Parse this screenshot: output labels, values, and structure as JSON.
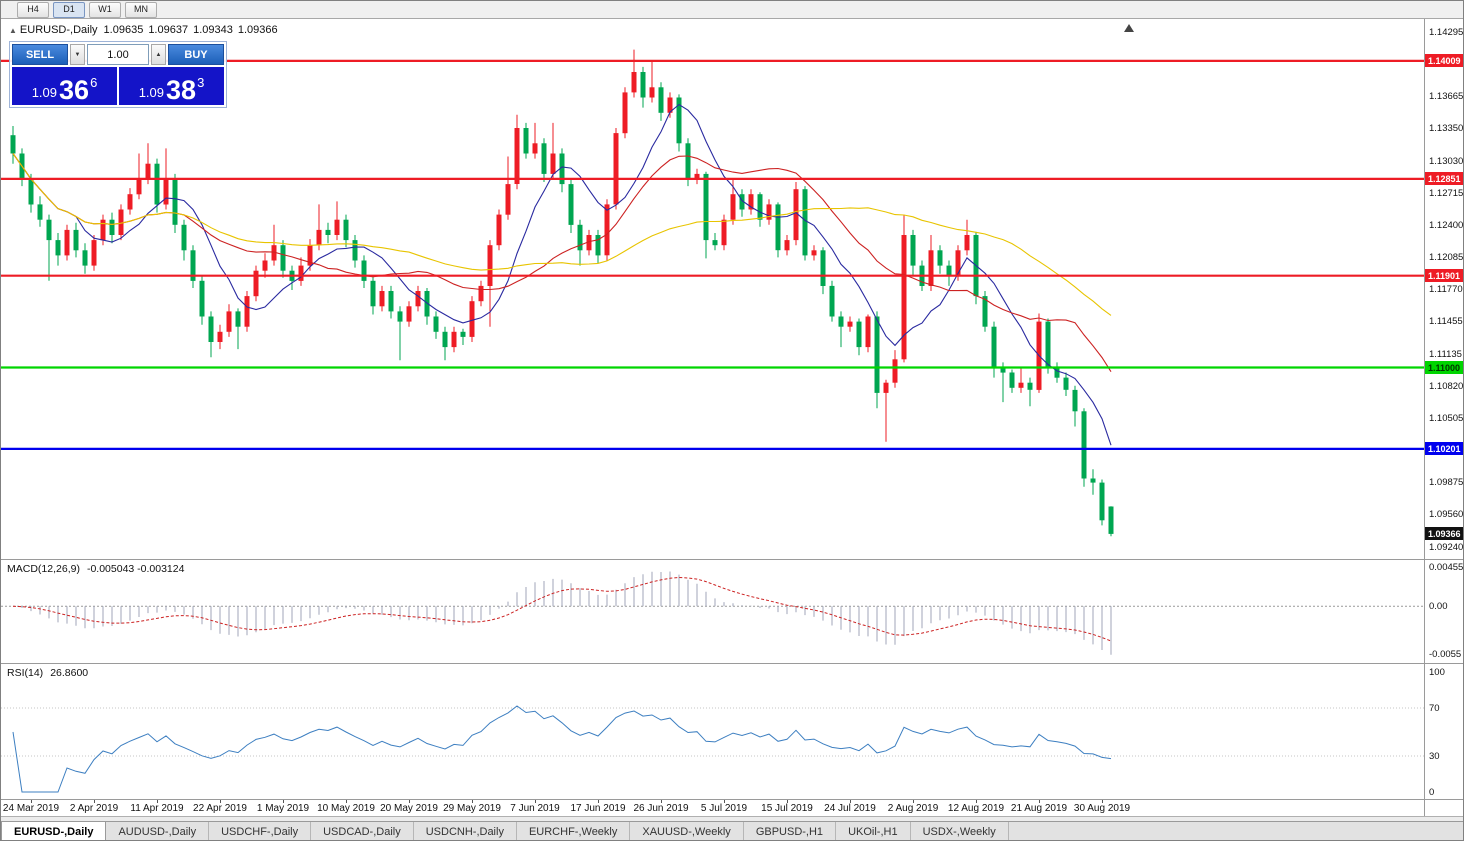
{
  "toolbar": {
    "periods": [
      "H4",
      "D1",
      "W1",
      "MN"
    ],
    "active": "D1"
  },
  "icons": {
    "collapse": "▲",
    "spin_up": "▲",
    "spin_down": "▼",
    "shift_marker": "▲"
  },
  "header": {
    "symbol": "EURUSD-,Daily",
    "open": "1.09635",
    "high": "1.09637",
    "low": "1.09343",
    "close": "1.09366"
  },
  "trade_panel": {
    "sell_label": "SELL",
    "buy_label": "BUY",
    "volume": "1.00",
    "sell_price": {
      "prefix": "1.09",
      "big": "36",
      "sup": "6"
    },
    "buy_price": {
      "prefix": "1.09",
      "big": "38",
      "sup": "3"
    }
  },
  "chart_data": {
    "type": "candlestick",
    "symbol": "EURUSD",
    "timeframe": "Daily",
    "colors": {
      "up": "#ee1c25",
      "down": "#00a651",
      "ma_fast": "#2a2aa0",
      "ma_mid": "#cc2222",
      "ma_slow": "#e8c400",
      "macd_bar": "#a0a6ba",
      "macd_signal": "#cc2222",
      "rsi_line": "#3d7fc1"
    },
    "price_range": {
      "max": 1.1442,
      "min": 1.0912
    },
    "axis_labels": [
      "1.14295",
      "1.13665",
      "1.13350",
      "1.13030",
      "1.12715",
      "1.12400",
      "1.12085",
      "1.11770",
      "1.11455",
      "1.11135",
      "1.10820",
      "1.10505",
      "1.09875",
      "1.09560",
      "1.09240"
    ],
    "levels": [
      {
        "price": 1.14009,
        "label": "1.14009",
        "color": "#ee1c25",
        "text_color": "#ffffff"
      },
      {
        "price": 1.12851,
        "label": "1.12851",
        "color": "#ee1c25",
        "text_color": "#ffffff"
      },
      {
        "price": 1.11901,
        "label": "1.11901",
        "color": "#ee1c25",
        "text_color": "#ffffff"
      },
      {
        "price": 1.11,
        "label": "1.11000",
        "color": "#00d500",
        "text_color": "#003300"
      },
      {
        "price": 1.10201,
        "label": "1.10201",
        "color": "#0000ee",
        "text_color": "#ffffff"
      }
    ],
    "current_price": {
      "price": 1.09366,
      "label": "1.09366",
      "bg": "#111111",
      "text_color": "#ffffff"
    },
    "ma": [
      {
        "period": 8,
        "color": "#2a2aa0"
      },
      {
        "period": 20,
        "color": "#cc2222"
      },
      {
        "period": 45,
        "color": "#e8c400"
      }
    ],
    "macd": {
      "label": "MACD(12,26,9)",
      "values_text": "-0.005043 -0.003124",
      "params": [
        12,
        26,
        9
      ],
      "axis": [
        "0.00455",
        "0.00",
        "-0.0055"
      ],
      "range": {
        "max": 0.005,
        "min": -0.0062
      }
    },
    "rsi": {
      "label": "RSI(14)",
      "value_text": "26.8600",
      "period": 14,
      "axis": [
        "100",
        "70",
        "30",
        "0"
      ],
      "levels": [
        70,
        30
      ]
    },
    "date_ticks": [
      "24 Mar 2019",
      "2 Apr 2019",
      "11 Apr 2019",
      "22 Apr 2019",
      "1 May 2019",
      "10 May 2019",
      "20 May 2019",
      "29 May 2019",
      "7 Jun 2019",
      "17 Jun 2019",
      "26 Jun 2019",
      "5 Jul 2019",
      "15 Jul 2019",
      "24 Jul 2019",
      "2 Aug 2019",
      "12 Aug 2019",
      "21 Aug 2019",
      "30 Aug 2019"
    ],
    "candles": [
      [
        1.1328,
        1.1337,
        1.13,
        1.131
      ],
      [
        1.131,
        1.1315,
        1.1278,
        1.1285
      ],
      [
        1.1285,
        1.129,
        1.1252,
        1.126
      ],
      [
        1.126,
        1.1268,
        1.1238,
        1.1245
      ],
      [
        1.1245,
        1.125,
        1.1185,
        1.1225
      ],
      [
        1.1225,
        1.1232,
        1.12,
        1.121
      ],
      [
        1.121,
        1.124,
        1.1205,
        1.1235
      ],
      [
        1.1235,
        1.1242,
        1.1208,
        1.1215
      ],
      [
        1.1215,
        1.1222,
        1.1192,
        1.12
      ],
      [
        1.12,
        1.123,
        1.1195,
        1.1225
      ],
      [
        1.1225,
        1.125,
        1.122,
        1.1245
      ],
      [
        1.1245,
        1.1252,
        1.1222,
        1.123
      ],
      [
        1.123,
        1.126,
        1.1225,
        1.1255
      ],
      [
        1.1255,
        1.1276,
        1.125,
        1.127
      ],
      [
        1.127,
        1.131,
        1.1265,
        1.1285
      ],
      [
        1.1285,
        1.132,
        1.128,
        1.13
      ],
      [
        1.13,
        1.1305,
        1.1252,
        1.126
      ],
      [
        1.126,
        1.1315,
        1.1255,
        1.1285
      ],
      [
        1.1285,
        1.129,
        1.1232,
        1.124
      ],
      [
        1.124,
        1.1245,
        1.1205,
        1.1215
      ],
      [
        1.1215,
        1.122,
        1.1178,
        1.1185
      ],
      [
        1.1185,
        1.119,
        1.1142,
        1.115
      ],
      [
        1.115,
        1.1155,
        1.111,
        1.1125
      ],
      [
        1.1125,
        1.1142,
        1.1118,
        1.1135
      ],
      [
        1.1135,
        1.1162,
        1.113,
        1.1155
      ],
      [
        1.1155,
        1.1158,
        1.1118,
        1.114
      ],
      [
        1.114,
        1.1175,
        1.1135,
        1.117
      ],
      [
        1.117,
        1.12,
        1.1165,
        1.1195
      ],
      [
        1.1195,
        1.1212,
        1.1188,
        1.1205
      ],
      [
        1.1205,
        1.124,
        1.12,
        1.122
      ],
      [
        1.122,
        1.1225,
        1.1188,
        1.1195
      ],
      [
        1.1195,
        1.12,
        1.1176,
        1.1185
      ],
      [
        1.1185,
        1.1208,
        1.118,
        1.12
      ],
      [
        1.12,
        1.1226,
        1.1195,
        1.122
      ],
      [
        1.122,
        1.126,
        1.1215,
        1.1235
      ],
      [
        1.1235,
        1.1242,
        1.1222,
        1.123
      ],
      [
        1.123,
        1.1263,
        1.1225,
        1.1245
      ],
      [
        1.1245,
        1.125,
        1.1218,
        1.1225
      ],
      [
        1.1225,
        1.123,
        1.1198,
        1.1205
      ],
      [
        1.1205,
        1.121,
        1.1178,
        1.1185
      ],
      [
        1.1185,
        1.119,
        1.1152,
        1.116
      ],
      [
        1.116,
        1.118,
        1.1155,
        1.1175
      ],
      [
        1.1175,
        1.118,
        1.1148,
        1.1155
      ],
      [
        1.1155,
        1.116,
        1.1107,
        1.1145
      ],
      [
        1.1145,
        1.1165,
        1.114,
        1.116
      ],
      [
        1.116,
        1.118,
        1.1155,
        1.1175
      ],
      [
        1.1175,
        1.1178,
        1.1142,
        1.115
      ],
      [
        1.115,
        1.1155,
        1.1128,
        1.1135
      ],
      [
        1.1135,
        1.114,
        1.1107,
        1.112
      ],
      [
        1.112,
        1.114,
        1.1115,
        1.1135
      ],
      [
        1.1135,
        1.1138,
        1.1122,
        1.113
      ],
      [
        1.113,
        1.117,
        1.1125,
        1.1165
      ],
      [
        1.1165,
        1.1185,
        1.116,
        1.118
      ],
      [
        1.118,
        1.1225,
        1.114,
        1.122
      ],
      [
        1.122,
        1.1255,
        1.1215,
        1.125
      ],
      [
        1.125,
        1.1307,
        1.1245,
        1.128
      ],
      [
        1.128,
        1.1348,
        1.1275,
        1.1335
      ],
      [
        1.1335,
        1.134,
        1.1305,
        1.131
      ],
      [
        1.131,
        1.134,
        1.1305,
        1.132
      ],
      [
        1.132,
        1.1325,
        1.1282,
        1.129
      ],
      [
        1.129,
        1.134,
        1.1285,
        1.131
      ],
      [
        1.131,
        1.1315,
        1.1272,
        1.128
      ],
      [
        1.128,
        1.1285,
        1.1232,
        1.124
      ],
      [
        1.124,
        1.1245,
        1.12,
        1.1215
      ],
      [
        1.1215,
        1.1235,
        1.121,
        1.123
      ],
      [
        1.123,
        1.1235,
        1.1202,
        1.121
      ],
      [
        1.121,
        1.1265,
        1.1205,
        1.126
      ],
      [
        1.126,
        1.1335,
        1.1255,
        1.133
      ],
      [
        1.133,
        1.1375,
        1.1325,
        1.137
      ],
      [
        1.137,
        1.1412,
        1.1365,
        1.139
      ],
      [
        1.139,
        1.1395,
        1.1355,
        1.1365
      ],
      [
        1.1365,
        1.14,
        1.136,
        1.1375
      ],
      [
        1.1375,
        1.138,
        1.1342,
        1.135
      ],
      [
        1.135,
        1.137,
        1.1345,
        1.1365
      ],
      [
        1.1365,
        1.1368,
        1.1312,
        1.132
      ],
      [
        1.132,
        1.1325,
        1.1278,
        1.1285
      ],
      [
        1.1285,
        1.1295,
        1.128,
        1.129
      ],
      [
        1.129,
        1.1292,
        1.1207,
        1.1225
      ],
      [
        1.1225,
        1.1232,
        1.1215,
        1.122
      ],
      [
        1.122,
        1.125,
        1.1215,
        1.1245
      ],
      [
        1.1245,
        1.1285,
        1.124,
        1.127
      ],
      [
        1.127,
        1.1275,
        1.1248,
        1.1255
      ],
      [
        1.1255,
        1.1275,
        1.125,
        1.127
      ],
      [
        1.127,
        1.1272,
        1.1238,
        1.1245
      ],
      [
        1.1245,
        1.1265,
        1.124,
        1.126
      ],
      [
        1.126,
        1.1262,
        1.1208,
        1.1215
      ],
      [
        1.1215,
        1.123,
        1.121,
        1.1225
      ],
      [
        1.1225,
        1.1282,
        1.122,
        1.1275
      ],
      [
        1.1275,
        1.1278,
        1.1205,
        1.121
      ],
      [
        1.121,
        1.122,
        1.1205,
        1.1215
      ],
      [
        1.1215,
        1.1218,
        1.1172,
        1.118
      ],
      [
        1.118,
        1.1185,
        1.1145,
        1.115
      ],
      [
        1.115,
        1.1155,
        1.112,
        1.114
      ],
      [
        1.114,
        1.115,
        1.1135,
        1.1145
      ],
      [
        1.1145,
        1.1148,
        1.1112,
        1.112
      ],
      [
        1.112,
        1.1152,
        1.1115,
        1.115
      ],
      [
        1.115,
        1.1155,
        1.106,
        1.1075
      ],
      [
        1.1075,
        1.1088,
        1.1027,
        1.1085
      ],
      [
        1.1085,
        1.1117,
        1.108,
        1.1108
      ],
      [
        1.1108,
        1.125,
        1.1105,
        1.123
      ],
      [
        1.123,
        1.1235,
        1.119,
        1.12
      ],
      [
        1.12,
        1.1205,
        1.1175,
        1.118
      ],
      [
        1.118,
        1.123,
        1.1175,
        1.1215
      ],
      [
        1.1215,
        1.122,
        1.1192,
        1.12
      ],
      [
        1.12,
        1.1205,
        1.118,
        1.119
      ],
      [
        1.119,
        1.122,
        1.1185,
        1.1215
      ],
      [
        1.1215,
        1.1245,
        1.121,
        1.123
      ],
      [
        1.123,
        1.1233,
        1.1162,
        1.117
      ],
      [
        1.117,
        1.1175,
        1.1135,
        1.114
      ],
      [
        1.114,
        1.1145,
        1.109,
        1.11
      ],
      [
        1.11,
        1.1105,
        1.1066,
        1.1095
      ],
      [
        1.1095,
        1.1098,
        1.1075,
        1.108
      ],
      [
        1.108,
        1.11,
        1.1075,
        1.1085
      ],
      [
        1.1085,
        1.109,
        1.1062,
        1.1078
      ],
      [
        1.1078,
        1.1153,
        1.1075,
        1.1145
      ],
      [
        1.1145,
        1.1148,
        1.1094,
        1.11
      ],
      [
        1.11,
        1.1105,
        1.1085,
        1.109
      ],
      [
        1.109,
        1.1095,
        1.1072,
        1.1078
      ],
      [
        1.1078,
        1.1082,
        1.1042,
        1.1057
      ],
      [
        1.1057,
        1.106,
        1.0983,
        1.0991
      ],
      [
        1.0991,
        1.1,
        1.0975,
        1.0987
      ],
      [
        1.0987,
        1.099,
        1.0945,
        1.095
      ],
      [
        1.09635,
        1.09637,
        1.09343,
        1.09366
      ]
    ]
  },
  "tabs": [
    {
      "label": "EURUSD-,Daily",
      "active": true
    },
    {
      "label": "AUDUSD-,Daily",
      "active": false
    },
    {
      "label": "USDCHF-,Daily",
      "active": false
    },
    {
      "label": "USDCAD-,Daily",
      "active": false
    },
    {
      "label": "USDCNH-,Daily",
      "active": false
    },
    {
      "label": "EURCHF-,Weekly",
      "active": false
    },
    {
      "label": "XAUUSD-,Weekly",
      "active": false
    },
    {
      "label": "GBPUSD-,H1",
      "active": false
    },
    {
      "label": "UKOil-,H1",
      "active": false
    },
    {
      "label": "USDX-,Weekly",
      "active": false
    }
  ]
}
